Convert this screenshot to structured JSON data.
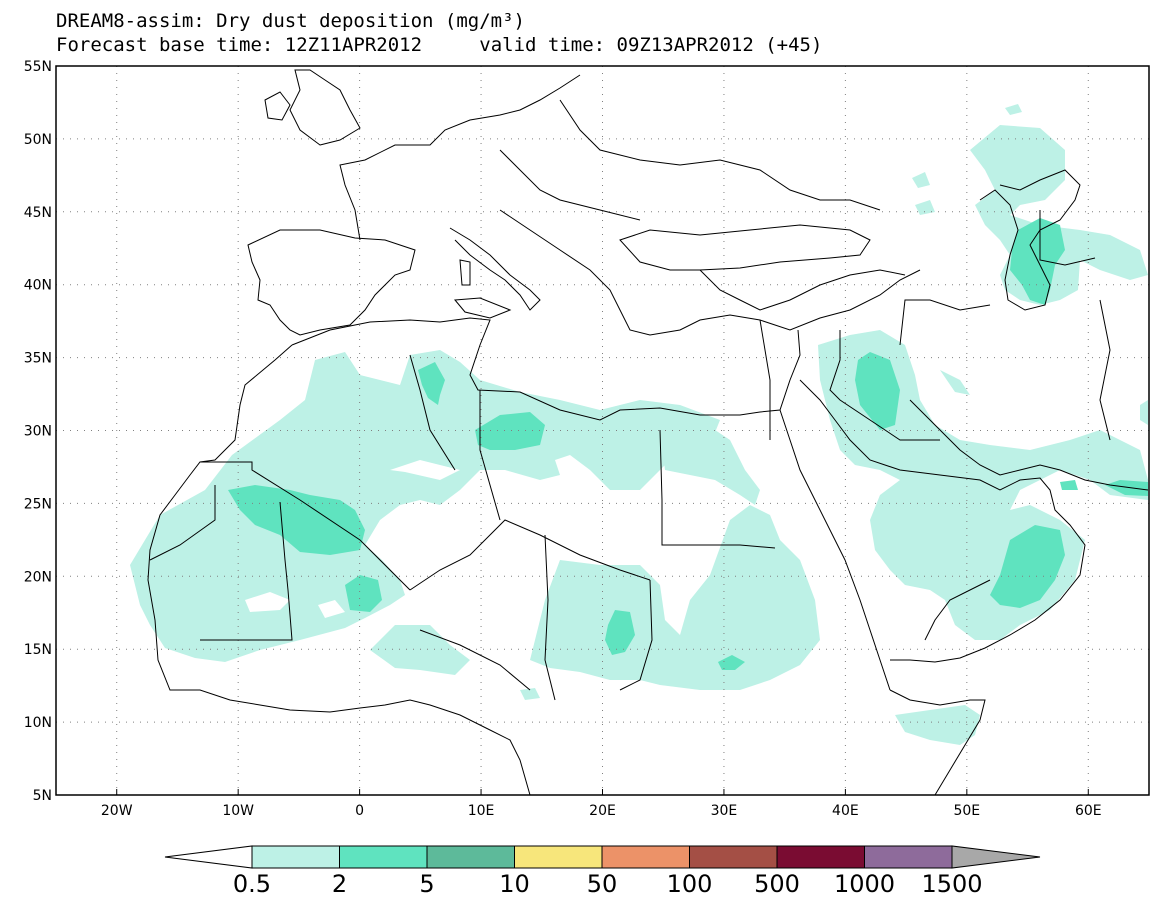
{
  "title": {
    "line1": "DREAM8-assim: Dry dust deposition (mg/m³)",
    "line2_left": "Forecast base time: 12Z11APR2012",
    "line2_right": "valid time: 09Z13APR2012 (+45)"
  },
  "map": {
    "lon_range": [
      -25,
      65
    ],
    "lat_range": [
      5,
      55
    ],
    "lat_labels": [
      {
        "text": "55N",
        "lat": 55
      },
      {
        "text": "50N",
        "lat": 50
      },
      {
        "text": "45N",
        "lat": 45
      },
      {
        "text": "40N",
        "lat": 40
      },
      {
        "text": "35N",
        "lat": 35
      },
      {
        "text": "30N",
        "lat": 30
      },
      {
        "text": "25N",
        "lat": 25
      },
      {
        "text": "20N",
        "lat": 20
      },
      {
        "text": "15N",
        "lat": 15
      },
      {
        "text": "10N",
        "lat": 10
      },
      {
        "text": "5N",
        "lat": 5
      }
    ],
    "lon_labels": [
      {
        "text": "20W",
        "lon": -20
      },
      {
        "text": "10W",
        "lon": -10
      },
      {
        "text": "0",
        "lon": 0
      },
      {
        "text": "10E",
        "lon": 10
      },
      {
        "text": "20E",
        "lon": 20
      },
      {
        "text": "30E",
        "lon": 30
      },
      {
        "text": "40E",
        "lon": 40
      },
      {
        "text": "50E",
        "lon": 50
      },
      {
        "text": "60E",
        "lon": 60
      }
    ]
  },
  "colorbar": {
    "labels": [
      "0.5",
      "2",
      "5",
      "10",
      "50",
      "100",
      "500",
      "1000",
      "1500"
    ],
    "colors": [
      "#bdf1e6",
      "#5fe3bf",
      "#5dba9a",
      "#f7e67b",
      "#ec9268",
      "#a44f45",
      "#7a0c32",
      "#8e6b9b"
    ],
    "under_color": "#ffffff",
    "over_color": "#a8a8a8"
  },
  "dust_colors": {
    "light": "#bdf1e6",
    "medium": "#5fe3bf"
  }
}
